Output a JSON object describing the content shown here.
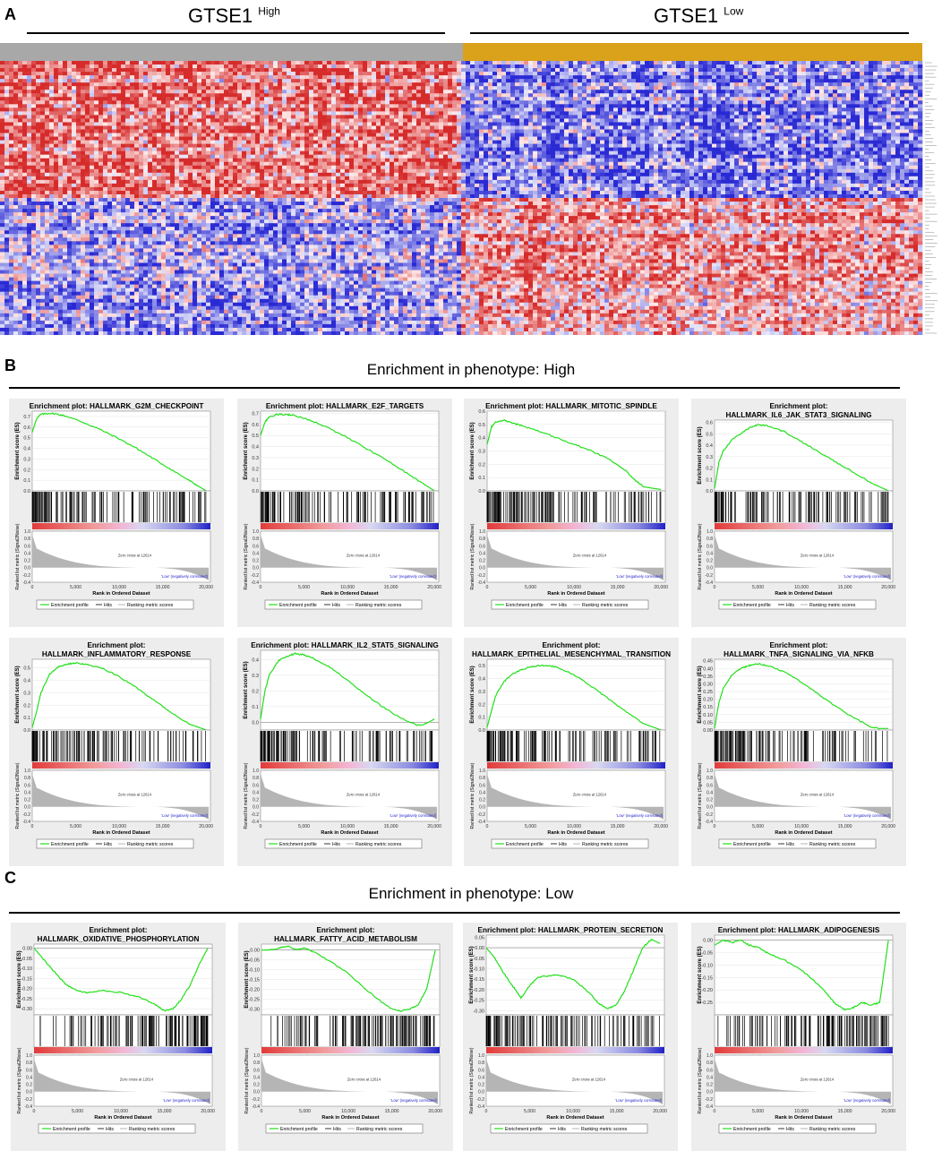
{
  "panels": {
    "a": "A",
    "b": "B",
    "c": "C"
  },
  "heatmap": {
    "high_label": "GTSE1",
    "high_sup": "High",
    "low_label": "GTSE1",
    "low_sup": "Low",
    "colors": {
      "red": "#d62b2b",
      "blue": "#2a2ad4",
      "high_bar": "#a8a8a8",
      "low_bar": "#d9a21a"
    }
  },
  "section_b_title": "Enrichment  in phenotype:  High",
  "section_c_title": "Enrichment  in phenotype:  Low",
  "common": {
    "ylabel_es": "Enrichment score (ES)",
    "ylabel_metric": "Ranked list metric (Signal2Noise)",
    "xlabel": "Rank in Ordered Dataset",
    "zero_cross": "Zero cross at 12614",
    "pos_label": "'High' (positively correlated)",
    "neg_label": "'Low' (negatively correlated)",
    "legend": [
      "Enrichment profile",
      "Hits",
      "Ranking metric scores"
    ],
    "x_ticks": [
      "0",
      "5,000",
      "10,000",
      "15,000",
      "20,000"
    ],
    "metric_ticks": [
      "1.0",
      "0.8",
      "0.6",
      "0.4",
      "0.2",
      "0.0",
      "-0.2",
      "-0.4"
    ]
  },
  "chart_data": [
    {
      "type": "line",
      "title_lines": [
        "Enrichment plot: HALLMARK_G2M_CHECKPOINT"
      ],
      "y_ticks": [
        "0.7",
        "0.6",
        "0.5",
        "0.4",
        "0.3",
        "0.2",
        "0.1",
        "0.0"
      ],
      "ylim": [
        0,
        0.75
      ],
      "x": [
        0,
        500,
        1000,
        2000,
        3000,
        4000,
        6000,
        8000,
        10000,
        12000,
        14000,
        16000,
        18000,
        19000,
        20000
      ],
      "y": [
        0.55,
        0.68,
        0.72,
        0.73,
        0.72,
        0.7,
        0.64,
        0.57,
        0.49,
        0.4,
        0.3,
        0.2,
        0.1,
        0.05,
        0.0
      ]
    },
    {
      "type": "line",
      "title_lines": [
        "Enrichment plot: HALLMARK_E2F_TARGETS"
      ],
      "y_ticks": [
        "0.7",
        "0.6",
        "0.5",
        "0.4",
        "0.3",
        "0.2",
        "0.1",
        "0.0"
      ],
      "ylim": [
        0,
        0.72
      ],
      "x": [
        0,
        500,
        1000,
        2000,
        3000,
        4000,
        6000,
        8000,
        10000,
        12000,
        14000,
        16000,
        18000,
        19000,
        20000
      ],
      "y": [
        0.5,
        0.62,
        0.67,
        0.69,
        0.69,
        0.68,
        0.63,
        0.56,
        0.48,
        0.39,
        0.3,
        0.2,
        0.1,
        0.05,
        0.0
      ]
    },
    {
      "type": "line",
      "title_lines": [
        "Enrichment plot: HALLMARK_MITOTIC_SPINDLE"
      ],
      "y_ticks": [
        "0.6",
        "0.5",
        "0.4",
        "0.3",
        "0.2",
        "0.1",
        "0.0"
      ],
      "ylim": [
        0,
        0.6
      ],
      "x": [
        0,
        500,
        1000,
        2000,
        3000,
        4000,
        6000,
        8000,
        10000,
        12000,
        14000,
        16000,
        17000,
        18000,
        20000
      ],
      "y": [
        0.35,
        0.48,
        0.52,
        0.53,
        0.51,
        0.49,
        0.45,
        0.4,
        0.35,
        0.3,
        0.24,
        0.15,
        0.08,
        0.03,
        0.01
      ]
    },
    {
      "type": "line",
      "title_lines": [
        "Enrichment plot:",
        "HALLMARK_IL6_JAK_STAT3_SIGNALING"
      ],
      "y_ticks": [
        "0.6",
        "0.5",
        "0.4",
        "0.3",
        "0.2",
        "0.1",
        "0.0"
      ],
      "ylim": [
        0,
        0.62
      ],
      "x": [
        0,
        500,
        1000,
        2000,
        3000,
        4000,
        5000,
        6000,
        8000,
        10000,
        12000,
        14000,
        16000,
        18000,
        20000
      ],
      "y": [
        0.02,
        0.25,
        0.35,
        0.45,
        0.5,
        0.55,
        0.58,
        0.57,
        0.52,
        0.43,
        0.34,
        0.25,
        0.16,
        0.07,
        0.0
      ]
    },
    {
      "type": "line",
      "title_lines": [
        "Enrichment plot:",
        "HALLMARK_INFLAMMATORY_RESPONSE"
      ],
      "y_ticks": [
        "0.5",
        "0.4",
        "0.3",
        "0.2",
        "0.1",
        "0.0"
      ],
      "ylim": [
        0,
        0.57
      ],
      "x": [
        0,
        500,
        1000,
        2000,
        3000,
        4000,
        5000,
        6000,
        8000,
        10000,
        12000,
        14000,
        16000,
        18000,
        20000
      ],
      "y": [
        0.02,
        0.15,
        0.3,
        0.45,
        0.51,
        0.53,
        0.54,
        0.53,
        0.5,
        0.43,
        0.34,
        0.24,
        0.14,
        0.05,
        0.0
      ]
    },
    {
      "type": "line",
      "title_lines": [
        "Enrichment plot: HALLMARK_IL2_STAT5_SIGNALING"
      ],
      "y_ticks": [
        "0.4",
        "0.3",
        "0.2",
        "0.1",
        "0.0"
      ],
      "ylim": [
        -0.05,
        0.46
      ],
      "x": [
        0,
        500,
        1000,
        2000,
        3000,
        4000,
        5000,
        6000,
        8000,
        10000,
        12000,
        14000,
        16000,
        18000,
        19000,
        20000
      ],
      "y": [
        0.02,
        0.2,
        0.3,
        0.39,
        0.42,
        0.44,
        0.43,
        0.41,
        0.35,
        0.27,
        0.18,
        0.1,
        0.03,
        -0.02,
        -0.01,
        0.02
      ]
    },
    {
      "type": "line",
      "title_lines": [
        "Enrichment plot:",
        "HALLMARK_EPITHELIAL_MESENCHYMAL_TRANSITION"
      ],
      "y_ticks": [
        "0.5",
        "0.4",
        "0.3",
        "0.2",
        "0.1",
        "0.0"
      ],
      "ylim": [
        0,
        0.55
      ],
      "x": [
        0,
        500,
        1000,
        2000,
        3000,
        4000,
        5000,
        6000,
        7000,
        8000,
        10000,
        12000,
        14000,
        16000,
        18000,
        20000
      ],
      "y": [
        0.02,
        0.15,
        0.27,
        0.38,
        0.44,
        0.47,
        0.49,
        0.5,
        0.5,
        0.49,
        0.43,
        0.34,
        0.24,
        0.14,
        0.05,
        0.0
      ]
    },
    {
      "type": "line",
      "title_lines": [
        "Enrichment plot:",
        "HALLMARK_TNFA_SIGNALING_VIA_NFKB"
      ],
      "y_ticks": [
        "0.45",
        "0.40",
        "0.35",
        "0.30",
        "0.25",
        "0.20",
        "0.15",
        "0.10",
        "0.05",
        "0.00"
      ],
      "ylim": [
        0,
        0.46
      ],
      "x": [
        0,
        500,
        1000,
        2000,
        3000,
        4000,
        5000,
        6000,
        8000,
        10000,
        12000,
        14000,
        16000,
        18000,
        19000,
        20000
      ],
      "y": [
        0.01,
        0.18,
        0.27,
        0.36,
        0.4,
        0.42,
        0.43,
        0.42,
        0.38,
        0.31,
        0.23,
        0.15,
        0.08,
        0.02,
        0.01,
        0.01
      ]
    },
    {
      "type": "line",
      "title_lines": [
        "Enrichment plot:",
        "HALLMARK_OXIDATIVE_PHOSPHORYLATION"
      ],
      "y_ticks": [
        "0.00",
        "-0.05",
        "-0.10",
        "-0.15",
        "-0.20",
        "-0.25",
        "-0.30"
      ],
      "ylim": [
        -0.33,
        0.02
      ],
      "x": [
        0,
        1000,
        2000,
        3000,
        4000,
        5000,
        6000,
        8000,
        10000,
        12000,
        14000,
        15000,
        16000,
        17000,
        18000,
        19000,
        20000
      ],
      "y": [
        0.0,
        -0.05,
        -0.1,
        -0.15,
        -0.19,
        -0.21,
        -0.22,
        -0.21,
        -0.22,
        -0.24,
        -0.28,
        -0.31,
        -0.3,
        -0.25,
        -0.18,
        -0.08,
        0.0
      ]
    },
    {
      "type": "line",
      "title_lines": [
        "Enrichment plot:",
        "HALLMARK_FATTY_ACID_METABOLISM"
      ],
      "y_ticks": [
        "0.00",
        "-0.05",
        "-0.10",
        "-0.15",
        "-0.20",
        "-0.25",
        "-0.30"
      ],
      "ylim": [
        -0.33,
        0.03
      ],
      "x": [
        0,
        1000,
        2000,
        3000,
        4000,
        5000,
        6000,
        8000,
        10000,
        12000,
        14000,
        15000,
        16000,
        17000,
        18000,
        19000,
        20000
      ],
      "y": [
        0.0,
        0.0,
        0.01,
        0.02,
        0.0,
        0.01,
        -0.01,
        -0.06,
        -0.12,
        -0.2,
        -0.27,
        -0.3,
        -0.31,
        -0.3,
        -0.28,
        -0.2,
        0.0
      ]
    },
    {
      "type": "line",
      "title_lines": [
        "Enrichment plot: HALLMARK_PROTEIN_SECRETION"
      ],
      "y_ticks": [
        "0.05",
        "0.00",
        "-0.05",
        "-0.10",
        "-0.15",
        "-0.20",
        "-0.25",
        "-0.30"
      ],
      "ylim": [
        -0.32,
        0.06
      ],
      "x": [
        0,
        1000,
        2000,
        3000,
        4000,
        5000,
        6000,
        8000,
        10000,
        12000,
        13000,
        14000,
        15000,
        16000,
        17000,
        18000,
        19000,
        20000
      ],
      "y": [
        0.0,
        -0.05,
        -0.12,
        -0.18,
        -0.24,
        -0.18,
        -0.14,
        -0.13,
        -0.15,
        -0.22,
        -0.27,
        -0.29,
        -0.27,
        -0.2,
        -0.1,
        0.0,
        0.04,
        0.02
      ]
    },
    {
      "type": "line",
      "title_lines": [
        "Enrichment plot: HALLMARK_ADIPOGENESIS"
      ],
      "y_ticks": [
        "0.00",
        "-0.05",
        "-0.10",
        "-0.15",
        "-0.20",
        "-0.25"
      ],
      "ylim": [
        -0.3,
        0.02
      ],
      "x": [
        0,
        1000,
        2000,
        3000,
        4000,
        5000,
        6000,
        8000,
        10000,
        12000,
        13000,
        14000,
        15000,
        16000,
        17000,
        18000,
        19000,
        20000
      ],
      "y": [
        -0.02,
        0.0,
        -0.01,
        0.0,
        -0.02,
        -0.03,
        -0.05,
        -0.08,
        -0.12,
        -0.18,
        -0.22,
        -0.26,
        -0.28,
        -0.27,
        -0.25,
        -0.26,
        -0.25,
        0.0
      ]
    }
  ]
}
